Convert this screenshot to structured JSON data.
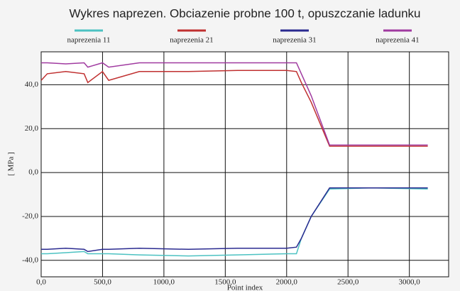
{
  "chart_data": {
    "type": "line",
    "title": "Wykres naprezen. Obciazenie probne 100 t, opuszczanie ladunku",
    "xlabel": "Point index",
    "ylabel": "[ MPa ]",
    "x": [
      0,
      50,
      200,
      350,
      380,
      500,
      550,
      800,
      1200,
      1600,
      2000,
      2080,
      2120,
      2200,
      2350,
      2700,
      3150
    ],
    "series": [
      {
        "name": "naprezenia 11",
        "color": "#4cc2c2",
        "values": [
          -37,
          -37,
          -36.5,
          -36,
          -37,
          -37,
          -37,
          -37.5,
          -38,
          -37.5,
          -37,
          -37,
          -30,
          -20,
          -7.5,
          -7,
          -7.5
        ]
      },
      {
        "name": "naprezenia 21",
        "color": "#c03030",
        "values": [
          42,
          45,
          46,
          45,
          41,
          46,
          42,
          46,
          46,
          46.5,
          46.5,
          46,
          41,
          32,
          12,
          12,
          12
        ]
      },
      {
        "name": "naprezenia 31",
        "color": "#2a2a90",
        "values": [
          -35,
          -35,
          -34.5,
          -35,
          -36,
          -35,
          -35,
          -34.5,
          -35,
          -34.5,
          -34.5,
          -34,
          -30,
          -20,
          -7,
          -7,
          -7
        ]
      },
      {
        "name": "naprezenia 41",
        "color": "#a03aa0",
        "values": [
          50,
          50,
          49.5,
          50,
          48,
          50,
          48,
          50,
          50,
          50,
          50,
          50,
          45,
          35,
          12.5,
          12.5,
          12.5
        ]
      }
    ],
    "xlim": [
      0,
      3320
    ],
    "ylim": [
      -47.5,
      55
    ],
    "xticks": [
      {
        "value": 0,
        "label": "0,0"
      },
      {
        "value": 500,
        "label": "500,0"
      },
      {
        "value": 1000,
        "label": "1000,0"
      },
      {
        "value": 1500,
        "label": "1500,0"
      },
      {
        "value": 2000,
        "label": "2000,0"
      },
      {
        "value": 2500,
        "label": "2500,0"
      },
      {
        "value": 3000,
        "label": "3000,0"
      }
    ],
    "yticks": [
      {
        "value": -40,
        "label": "-40,0"
      },
      {
        "value": -20,
        "label": "-20,0"
      },
      {
        "value": 0,
        "label": "0,0"
      },
      {
        "value": 20,
        "label": "20,0"
      },
      {
        "value": 40,
        "label": "40,0"
      }
    ],
    "grid": true
  }
}
